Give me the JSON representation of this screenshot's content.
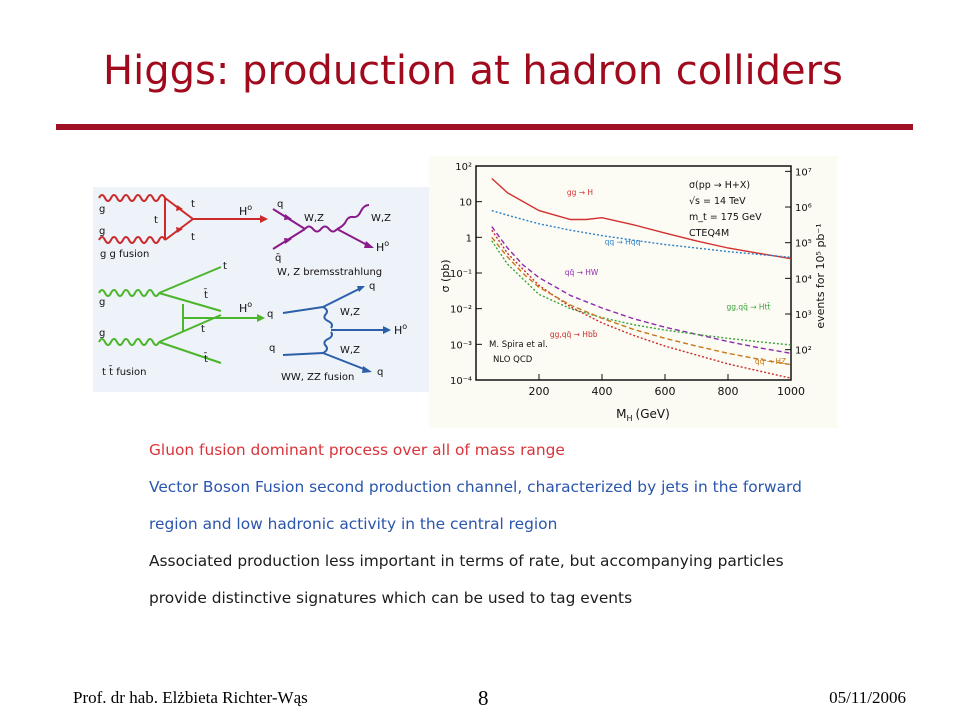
{
  "slide": {
    "title": "Higgs: production at hadron colliders"
  },
  "diagrams": {
    "gg_fusion": {
      "label": "g g fusion",
      "gluon_top": "g",
      "gluon_bottom": "g",
      "quark_top": "t",
      "quark_mid": "t",
      "quark_bot": "t",
      "higgs": "H",
      "higgs_sup": "o"
    },
    "bremsstrahlung": {
      "label": "W, Z bremsstrahlung",
      "quark_in": "q",
      "antiquark_in": "q̄",
      "boson_mid": "W,Z",
      "boson_out": "W,Z",
      "higgs": "H",
      "higgs_sup": "o"
    },
    "ttbar_fusion": {
      "label_t1": "t",
      "label_t2": "t",
      "label_tbar_top": "t̄",
      "label_t_mid": "t",
      "label_tbar_bot": "t̄",
      "gluon_top": "g",
      "gluon_bottom": "g",
      "higgs": "H",
      "higgs_sup": "o",
      "label": "t t̄ fusion"
    },
    "ww_zz_fusion": {
      "quark_in_top": "q",
      "quark_out_top": "q",
      "quark_in_bot": "q",
      "quark_out_bot": "q",
      "boson_top": "W,Z",
      "boson_bot": "W,Z",
      "higgs": "H",
      "higgs_sup": "o",
      "label": "WW, ZZ fusion"
    }
  },
  "colors": {
    "title": "#a10a1d",
    "rule": "#a01024",
    "gg": "#cc2a2a",
    "brems": "#8a1a8a",
    "tt": "#4bb52b",
    "vbf": "#2b5fa8",
    "bullet_red": "#d8343a",
    "bullet_blue": "#2a55ad"
  },
  "chart_data": {
    "type": "line",
    "xlabel": "M",
    "xlabel_sub": "H",
    "xlabel_unit": "(GeV)",
    "ylabel": "σ (pb)",
    "ylabel_right": "events for 10⁵ pb⁻¹",
    "x_ticks": [
      "200",
      "400",
      "600",
      "800",
      "1000"
    ],
    "y_ticks": [
      "10²",
      "10",
      "1",
      "10⁻¹",
      "10⁻²",
      "10⁻³",
      "10⁻⁴"
    ],
    "y_ticks_right": [
      "10⁷",
      "10⁶",
      "10⁵",
      "10⁴",
      "10³",
      "10²"
    ],
    "xlim": [
      0,
      1000
    ],
    "ylim_log10": [
      -4,
      2
    ],
    "legend": {
      "line1": "σ(pp → H+X)",
      "line2": "√s = 14 TeV",
      "line3": "m_t = 175 GeV",
      "line4": "CTEQ4M"
    },
    "credit_line1": "M. Spira et al.",
    "credit_line2": "NLO QCD",
    "series": [
      {
        "name": "gg → H",
        "color": "#d33030",
        "dash": "",
        "x": [
          50,
          100,
          200,
          300,
          350,
          400,
          500,
          600,
          700,
          800,
          900,
          1000
        ],
        "log10y": [
          1.65,
          1.25,
          0.75,
          0.5,
          0.5,
          0.55,
          0.35,
          0.12,
          -0.1,
          -0.3,
          -0.45,
          -0.6
        ]
      },
      {
        "name": "qq → Hqq",
        "color": "#2f7fc8",
        "dash": "2,2",
        "x": [
          50,
          100,
          200,
          300,
          400,
          500,
          600,
          700,
          800,
          900,
          1000
        ],
        "log10y": [
          0.75,
          0.62,
          0.38,
          0.2,
          0.05,
          -0.08,
          -0.2,
          -0.3,
          -0.4,
          -0.48,
          -0.56
        ]
      },
      {
        "name": "qq̄ → HW",
        "color": "#8f2ab0",
        "dash": "5,3",
        "x": [
          50,
          100,
          150,
          200,
          300,
          400,
          500,
          600,
          700,
          800,
          900,
          1000
        ],
        "log10y": [
          0.3,
          -0.3,
          -0.78,
          -1.13,
          -1.63,
          -1.98,
          -2.28,
          -2.52,
          -2.72,
          -2.92,
          -3.1,
          -3.25
        ]
      },
      {
        "name": "gg,qq̄ → Htt̄",
        "color": "#3aa33a",
        "dash": "2,2",
        "x": [
          50,
          100,
          200,
          300,
          400,
          500,
          600,
          700,
          800,
          900,
          1000
        ],
        "log10y": [
          -0.1,
          -0.75,
          -1.6,
          -2.0,
          -2.25,
          -2.45,
          -2.6,
          -2.72,
          -2.83,
          -2.93,
          -3.02
        ]
      },
      {
        "name": "gg,qq̄ → Hbb̄",
        "color": "#cc2a2a",
        "dash": "2,2",
        "x": [
          50,
          100,
          200,
          300,
          400,
          500,
          600,
          700,
          800,
          900,
          1000
        ],
        "log10y": [
          0.2,
          -0.45,
          -1.35,
          -1.95,
          -2.4,
          -2.75,
          -3.05,
          -3.3,
          -3.55,
          -3.75,
          -3.95
        ]
      },
      {
        "name": "qq̄ → HZ",
        "color": "#c8781a",
        "dash": "5,3",
        "x": [
          50,
          100,
          150,
          200,
          300,
          400,
          500,
          600,
          700,
          800,
          900,
          1000
        ],
        "log10y": [
          0.0,
          -0.55,
          -1.02,
          -1.4,
          -1.9,
          -2.27,
          -2.58,
          -2.83,
          -3.05,
          -3.25,
          -3.42,
          -3.57
        ]
      }
    ],
    "curve_labels": [
      {
        "text": "gg → H",
        "x": 330,
        "log10y": 1.18,
        "color": "#d33030"
      },
      {
        "text": "qq → Hqq",
        "x": 465,
        "log10y": -0.2,
        "color": "#2f7fc8"
      },
      {
        "text": "qq̄ → HW",
        "x": 335,
        "log10y": -1.05,
        "color": "#8f2ab0"
      },
      {
        "text": "gg,qq̄ → Htt̄",
        "x": 865,
        "log10y": -2.02,
        "color": "#3aa33a"
      },
      {
        "text": "gg,qq̄ → Hbb̄",
        "x": 310,
        "log10y": -2.8,
        "color": "#cc2a2a"
      },
      {
        "text": "qq̄ → HZ",
        "x": 935,
        "log10y": -3.55,
        "color": "#c8781a"
      }
    ]
  },
  "bullets": [
    {
      "text": "Gluon fusion dominant process over all of mass range",
      "color": "red"
    },
    {
      "text": "Vector Boson Fusion second production channel, characterized by jets in the forward",
      "color": "blue"
    },
    {
      "text": "region and low hadronic activity in the central region",
      "color": "blue"
    },
    {
      "text": "Associated production less important in terms of rate, but accompanying particles",
      "color": "black"
    },
    {
      "text": "provide distinctive signatures which can be used to tag events",
      "color": "black"
    }
  ],
  "footer": {
    "author": "Prof. dr hab. Elżbieta Richter-Wąs",
    "page": "8",
    "date": "05/11/2006"
  }
}
